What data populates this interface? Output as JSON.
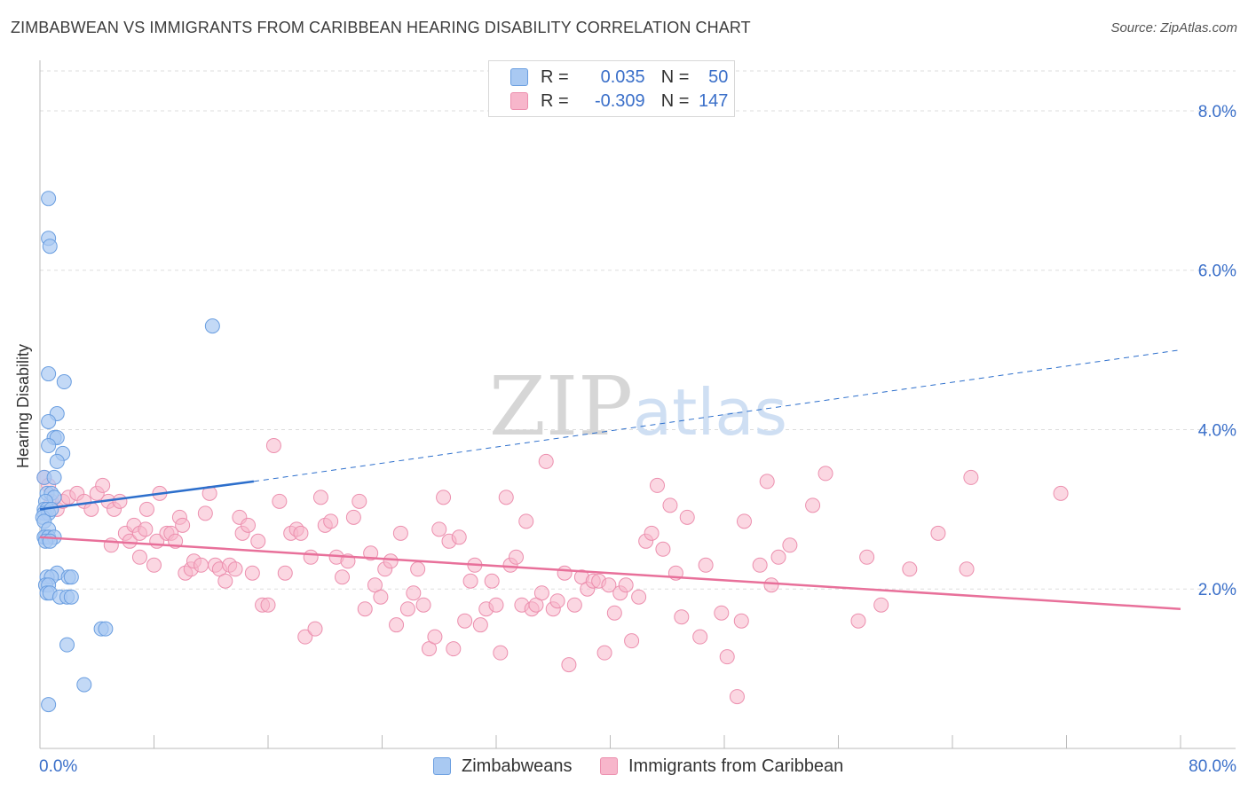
{
  "title": "ZIMBABWEAN VS IMMIGRANTS FROM CARIBBEAN HEARING DISABILITY CORRELATION CHART",
  "source": "Source: ZipAtlas.com",
  "watermark": {
    "zip": "ZIP",
    "atlas": "atlas"
  },
  "legend": {
    "series1": {
      "r_label": "R =",
      "r_value": "0.035",
      "n_label": "N =",
      "n_value": "50"
    },
    "series2": {
      "r_label": "R =",
      "r_value": "-0.309",
      "n_label": "N =",
      "n_value": "147"
    }
  },
  "bottom_legend": {
    "series1": "Zimbabweans",
    "series2": "Immigrants from Caribbean"
  },
  "colors": {
    "blue_fill": "#a9c9f2",
    "blue_stroke": "#6a9ee0",
    "blue_line": "#2d6fcc",
    "pink_fill": "#f7b6cb",
    "pink_stroke": "#ec8fae",
    "pink_line": "#e8709a",
    "tick_label": "#3a6fc9",
    "grid": "#dddddd"
  },
  "chart_data": {
    "type": "scatter",
    "title": "ZIMBABWEAN VS IMMIGRANTS FROM CARIBBEAN HEARING DISABILITY CORRELATION CHART",
    "xlabel": "",
    "ylabel": "Hearing Disability",
    "xlim": [
      0,
      80
    ],
    "ylim": [
      0,
      8.5
    ],
    "x_tick_labels": [
      "0.0%",
      "80.0%"
    ],
    "y_ticks": [
      2,
      4,
      6,
      8
    ],
    "y_tick_labels": [
      "2.0%",
      "4.0%",
      "6.0%",
      "8.0%"
    ],
    "grid": true,
    "legend_position": "top-center",
    "series": [
      {
        "name": "Zimbabweans",
        "points": [
          [
            0.6,
            6.9
          ],
          [
            0.6,
            6.4
          ],
          [
            0.7,
            6.3
          ],
          [
            12.1,
            5.3
          ],
          [
            0.6,
            4.7
          ],
          [
            1.7,
            4.6
          ],
          [
            1.2,
            4.2
          ],
          [
            0.6,
            4.1
          ],
          [
            1.0,
            3.9
          ],
          [
            1.2,
            3.9
          ],
          [
            0.6,
            3.8
          ],
          [
            1.6,
            3.7
          ],
          [
            1.2,
            3.6
          ],
          [
            0.3,
            3.4
          ],
          [
            1.0,
            3.4
          ],
          [
            0.5,
            3.2
          ],
          [
            0.8,
            3.2
          ],
          [
            1.0,
            3.15
          ],
          [
            0.4,
            3.1
          ],
          [
            0.3,
            3.0
          ],
          [
            0.5,
            3.0
          ],
          [
            0.3,
            2.95
          ],
          [
            0.6,
            2.95
          ],
          [
            0.2,
            2.9
          ],
          [
            0.3,
            2.85
          ],
          [
            0.6,
            2.75
          ],
          [
            0.4,
            2.65
          ],
          [
            0.3,
            2.65
          ],
          [
            0.6,
            2.65
          ],
          [
            1.0,
            2.65
          ],
          [
            0.4,
            2.6
          ],
          [
            0.7,
            2.6
          ],
          [
            1.2,
            2.2
          ],
          [
            0.5,
            2.15
          ],
          [
            0.8,
            2.15
          ],
          [
            2.0,
            2.15
          ],
          [
            2.2,
            2.15
          ],
          [
            0.4,
            2.05
          ],
          [
            0.6,
            2.05
          ],
          [
            0.5,
            1.95
          ],
          [
            0.7,
            1.95
          ],
          [
            1.4,
            1.9
          ],
          [
            1.9,
            1.9
          ],
          [
            2.2,
            1.9
          ],
          [
            4.3,
            1.5
          ],
          [
            4.6,
            1.5
          ],
          [
            1.9,
            1.3
          ],
          [
            3.1,
            0.8
          ],
          [
            0.6,
            0.55
          ],
          [
            0.8,
            3.0
          ]
        ]
      },
      {
        "name": "Immigrants from Caribbean",
        "points": [
          [
            0.3,
            3.4
          ],
          [
            0.6,
            3.3
          ],
          [
            0.8,
            3.1
          ],
          [
            1.2,
            3.0
          ],
          [
            1.6,
            3.1
          ],
          [
            2.0,
            3.15
          ],
          [
            2.6,
            3.2
          ],
          [
            3.1,
            3.1
          ],
          [
            3.6,
            3.0
          ],
          [
            4.0,
            3.2
          ],
          [
            4.4,
            3.3
          ],
          [
            4.8,
            3.1
          ],
          [
            5.2,
            3.0
          ],
          [
            5.6,
            3.1
          ],
          [
            6.0,
            2.7
          ],
          [
            6.3,
            2.6
          ],
          [
            6.6,
            2.8
          ],
          [
            7.0,
            2.7
          ],
          [
            5.0,
            2.55
          ],
          [
            7.4,
            2.75
          ],
          [
            7.0,
            2.4
          ],
          [
            7.5,
            3.0
          ],
          [
            8.2,
            2.6
          ],
          [
            8.0,
            2.3
          ],
          [
            8.4,
            3.2
          ],
          [
            8.9,
            2.7
          ],
          [
            9.2,
            2.7
          ],
          [
            9.5,
            2.6
          ],
          [
            9.8,
            2.9
          ],
          [
            10.0,
            2.8
          ],
          [
            10.2,
            2.2
          ],
          [
            10.6,
            2.25
          ],
          [
            10.8,
            2.35
          ],
          [
            11.3,
            2.3
          ],
          [
            11.6,
            2.95
          ],
          [
            11.9,
            3.2
          ],
          [
            12.3,
            2.3
          ],
          [
            12.6,
            2.25
          ],
          [
            13.0,
            2.1
          ],
          [
            13.3,
            2.3
          ],
          [
            13.7,
            2.25
          ],
          [
            14.0,
            2.9
          ],
          [
            14.2,
            2.7
          ],
          [
            14.6,
            2.8
          ],
          [
            14.9,
            2.2
          ],
          [
            15.3,
            2.6
          ],
          [
            15.6,
            1.8
          ],
          [
            16.0,
            1.8
          ],
          [
            16.4,
            3.8
          ],
          [
            16.8,
            3.1
          ],
          [
            17.2,
            2.2
          ],
          [
            17.6,
            2.7
          ],
          [
            18.0,
            2.75
          ],
          [
            18.3,
            2.7
          ],
          [
            18.6,
            1.4
          ],
          [
            19.0,
            2.4
          ],
          [
            19.3,
            1.5
          ],
          [
            19.7,
            3.15
          ],
          [
            20.0,
            2.8
          ],
          [
            20.4,
            2.85
          ],
          [
            20.8,
            2.4
          ],
          [
            21.2,
            2.15
          ],
          [
            21.6,
            2.35
          ],
          [
            22.0,
            2.9
          ],
          [
            22.4,
            3.1
          ],
          [
            22.8,
            1.75
          ],
          [
            23.2,
            2.45
          ],
          [
            23.5,
            2.05
          ],
          [
            23.9,
            1.9
          ],
          [
            24.2,
            2.25
          ],
          [
            24.6,
            2.35
          ],
          [
            25.0,
            1.55
          ],
          [
            25.3,
            2.7
          ],
          [
            25.8,
            1.75
          ],
          [
            26.2,
            1.95
          ],
          [
            26.5,
            2.25
          ],
          [
            26.9,
            1.8
          ],
          [
            27.3,
            1.25
          ],
          [
            27.7,
            1.4
          ],
          [
            28.0,
            2.75
          ],
          [
            28.3,
            3.15
          ],
          [
            28.7,
            2.6
          ],
          [
            29.0,
            1.25
          ],
          [
            29.4,
            2.65
          ],
          [
            29.8,
            1.6
          ],
          [
            30.2,
            2.1
          ],
          [
            30.5,
            2.3
          ],
          [
            30.9,
            1.55
          ],
          [
            31.3,
            1.75
          ],
          [
            31.7,
            2.1
          ],
          [
            32.0,
            1.8
          ],
          [
            32.3,
            1.2
          ],
          [
            32.7,
            3.15
          ],
          [
            33.0,
            2.3
          ],
          [
            33.4,
            2.4
          ],
          [
            33.8,
            1.8
          ],
          [
            34.1,
            2.85
          ],
          [
            34.5,
            1.75
          ],
          [
            34.8,
            1.8
          ],
          [
            35.2,
            1.95
          ],
          [
            35.5,
            3.6
          ],
          [
            36.0,
            1.75
          ],
          [
            36.3,
            1.85
          ],
          [
            36.8,
            2.2
          ],
          [
            37.1,
            1.05
          ],
          [
            37.5,
            1.8
          ],
          [
            38.0,
            2.15
          ],
          [
            38.4,
            2.0
          ],
          [
            38.8,
            2.1
          ],
          [
            39.2,
            2.1
          ],
          [
            39.6,
            1.2
          ],
          [
            39.9,
            2.05
          ],
          [
            40.3,
            1.7
          ],
          [
            40.7,
            1.95
          ],
          [
            41.1,
            2.05
          ],
          [
            41.5,
            1.35
          ],
          [
            42.0,
            1.9
          ],
          [
            42.5,
            2.6
          ],
          [
            42.9,
            2.7
          ],
          [
            43.3,
            3.3
          ],
          [
            43.7,
            2.5
          ],
          [
            44.2,
            3.05
          ],
          [
            44.6,
            2.2
          ],
          [
            45.0,
            1.65
          ],
          [
            45.4,
            2.9
          ],
          [
            46.3,
            1.4
          ],
          [
            46.7,
            2.3
          ],
          [
            47.8,
            1.7
          ],
          [
            48.2,
            1.15
          ],
          [
            48.9,
            0.65
          ],
          [
            49.2,
            1.6
          ],
          [
            49.4,
            2.85
          ],
          [
            50.5,
            2.3
          ],
          [
            51.0,
            3.35
          ],
          [
            51.3,
            2.05
          ],
          [
            51.8,
            2.4
          ],
          [
            52.6,
            2.55
          ],
          [
            54.2,
            3.05
          ],
          [
            55.1,
            3.45
          ],
          [
            57.4,
            1.6
          ],
          [
            58.0,
            2.4
          ],
          [
            59.0,
            1.8
          ],
          [
            61.0,
            2.25
          ],
          [
            63.0,
            2.7
          ],
          [
            65.0,
            2.25
          ],
          [
            65.3,
            3.4
          ],
          [
            71.6,
            3.2
          ]
        ]
      }
    ],
    "trend_lines": [
      {
        "series": "Zimbabweans",
        "x0": 0,
        "y0": 3.0,
        "x1": 15,
        "y1": 3.35,
        "dashed_to_x": 80,
        "dashed_to_y": 5.0
      },
      {
        "series": "Immigrants from Caribbean",
        "x0": 0,
        "y0": 2.65,
        "x1": 80,
        "y1": 1.75
      }
    ]
  }
}
